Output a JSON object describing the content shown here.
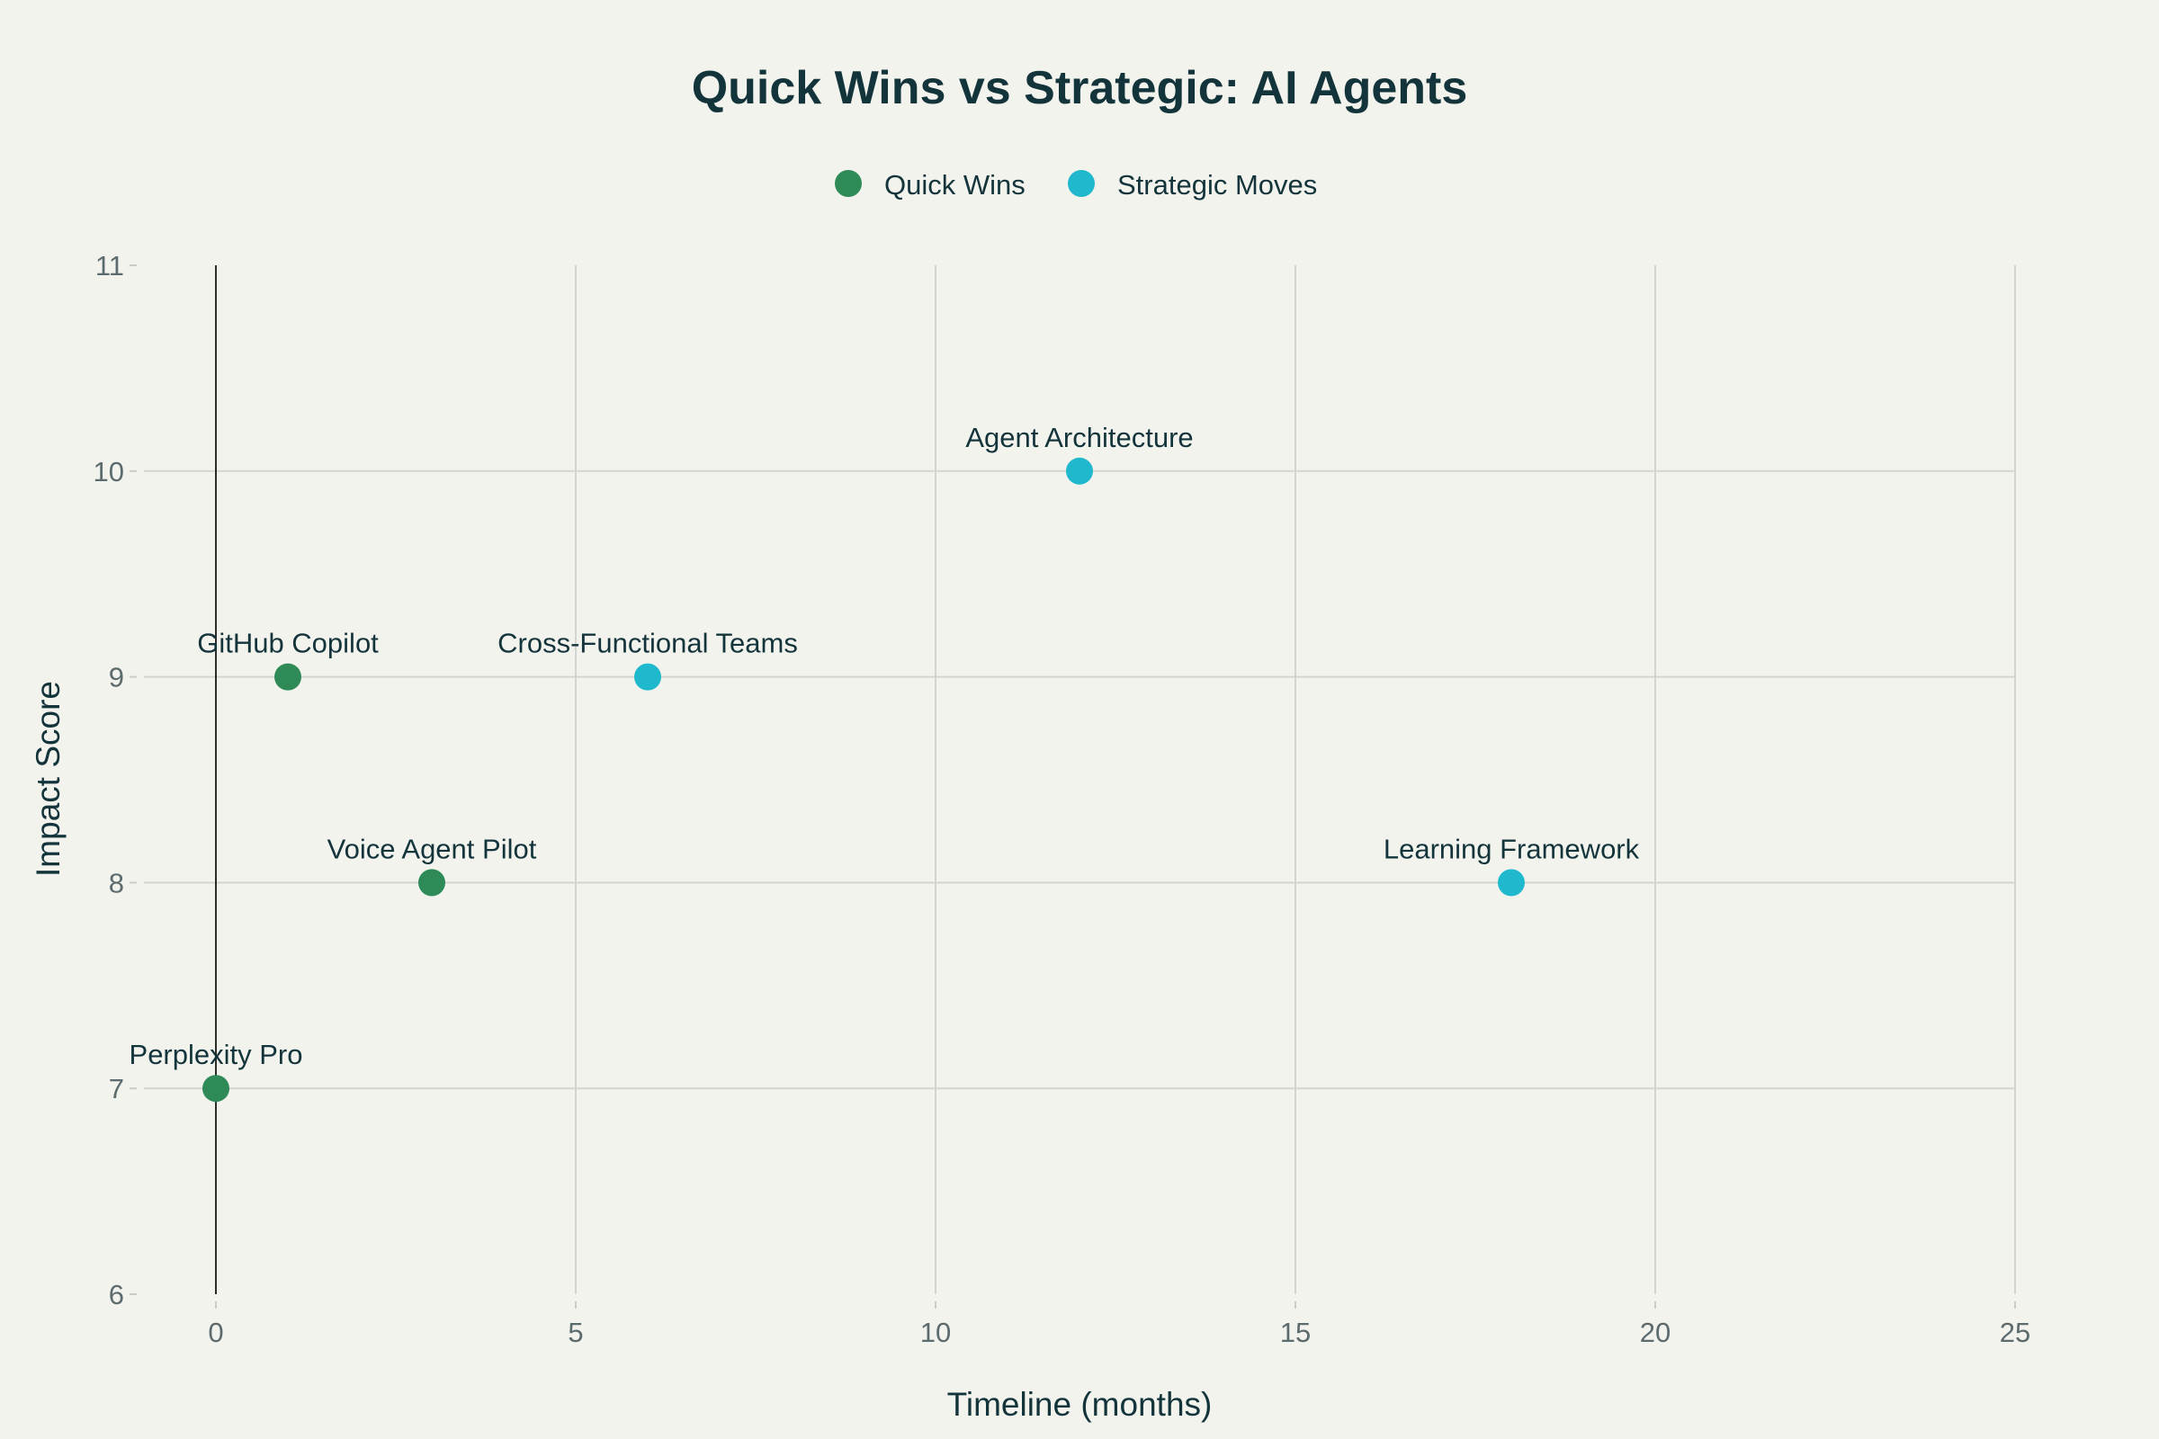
{
  "chart_data": {
    "type": "scatter",
    "title": "Quick Wins vs Strategic: AI Agents",
    "xlabel": "Timeline (months)",
    "ylabel": "Impact Score",
    "xlim": [
      -1,
      25
    ],
    "ylim": [
      6,
      11
    ],
    "x_ticks": [
      0,
      5,
      10,
      15,
      20,
      25
    ],
    "y_ticks": [
      6,
      7,
      8,
      9,
      10,
      11
    ],
    "grid": true,
    "legend_position": "top-center",
    "series": [
      {
        "name": "Quick Wins",
        "color": "#2e8b57",
        "points": [
          {
            "label": "Perplexity Pro",
            "x": 0,
            "y": 7
          },
          {
            "label": "GitHub Copilot",
            "x": 1,
            "y": 9
          },
          {
            "label": "Voice Agent Pilot",
            "x": 3,
            "y": 8
          }
        ]
      },
      {
        "name": "Strategic Moves",
        "color": "#1fb8cd",
        "points": [
          {
            "label": "Cross-Functional Teams",
            "x": 6,
            "y": 9
          },
          {
            "label": "Agent Architecture",
            "x": 12,
            "y": 10
          },
          {
            "label": "Learning Framework",
            "x": 18,
            "y": 8
          }
        ]
      }
    ]
  }
}
